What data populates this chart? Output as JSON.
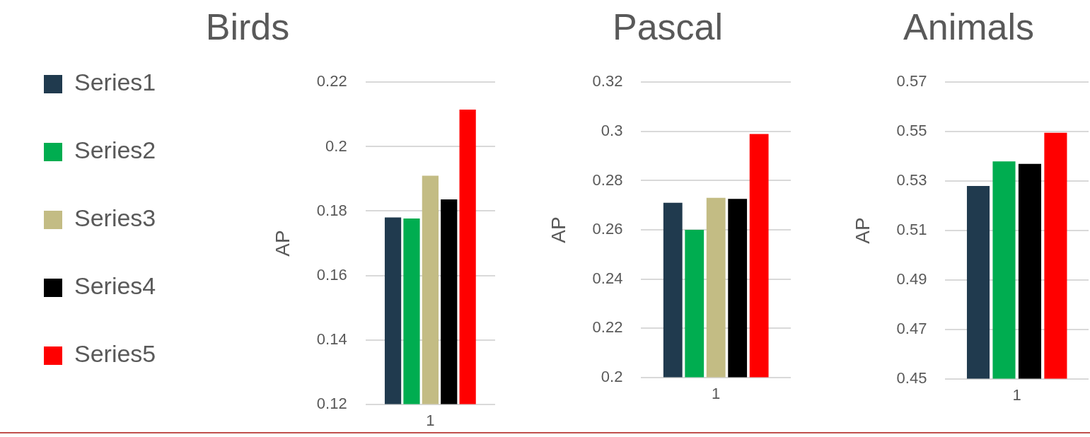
{
  "chart_data": [
    {
      "type": "bar",
      "title": "Birds",
      "ylabel": "AP",
      "categories": [
        "1"
      ],
      "ylim": [
        0.12,
        0.22
      ],
      "yticks": [
        0.12,
        0.14,
        0.16,
        0.18,
        0.2,
        0.22
      ],
      "grid": "y",
      "legend": "left",
      "series": [
        {
          "name": "Series1",
          "color": "#203a4e",
          "values": [
            0.178
          ]
        },
        {
          "name": "Series2",
          "color": "#00ad50",
          "values": [
            0.1777
          ]
        },
        {
          "name": "Series3",
          "color": "#c3bc84",
          "values": [
            0.191
          ]
        },
        {
          "name": "Series4",
          "color": "#000000",
          "values": [
            0.1836
          ]
        },
        {
          "name": "Series5",
          "color": "#ff0000",
          "values": [
            0.2115
          ]
        }
      ]
    },
    {
      "type": "bar",
      "title": "Pascal",
      "ylabel": "AP",
      "categories": [
        "1"
      ],
      "ylim": [
        0.2,
        0.32
      ],
      "yticks": [
        0.2,
        0.22,
        0.24,
        0.26,
        0.28,
        0.3,
        0.32
      ],
      "grid": "y",
      "series": [
        {
          "color": "#203a4e",
          "values": [
            0.271
          ]
        },
        {
          "color": "#00ad50",
          "values": [
            0.26
          ]
        },
        {
          "color": "#c3bc84",
          "values": [
            0.273
          ]
        },
        {
          "color": "#000000",
          "values": [
            0.2726
          ]
        },
        {
          "color": "#ff0000",
          "values": [
            0.299
          ]
        }
      ]
    },
    {
      "type": "bar",
      "title": "Animals",
      "ylabel": "AP",
      "categories": [
        "1"
      ],
      "ylim": [
        0.45,
        0.57
      ],
      "yticks": [
        0.45,
        0.47,
        0.49,
        0.51,
        0.53,
        0.55,
        0.57
      ],
      "grid": "y",
      "series": [
        {
          "color": "#203a4e",
          "values": [
            0.528
          ]
        },
        {
          "color": "#00ad50",
          "values": [
            0.538
          ]
        },
        {
          "color": "#c3bc84",
          "values": [
            null
          ]
        },
        {
          "color": "#000000",
          "values": [
            0.537
          ]
        },
        {
          "color": "#ff0000",
          "values": [
            0.5496
          ]
        }
      ]
    }
  ]
}
